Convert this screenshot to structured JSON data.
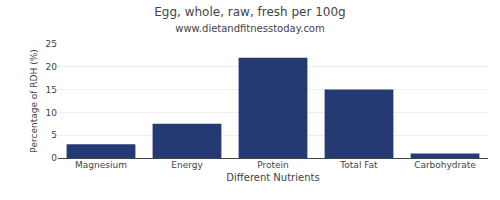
{
  "chart_data": {
    "type": "bar",
    "title": "Egg, whole, raw, fresh per 100g",
    "subtitle": "www.dietandfitnesstoday.com",
    "categories": [
      "Magnesium",
      "Energy",
      "Protein",
      "Total Fat",
      "Carbohydrate"
    ],
    "values": [
      3.0,
      7.5,
      22.0,
      15.0,
      1.0
    ],
    "color": "#253A72",
    "xlabel": "Different Nutrients",
    "ylabel": "Percentage of RDH (%)",
    "ylim": [
      0,
      25
    ],
    "yticks": [
      0,
      5,
      10,
      15,
      20,
      25
    ],
    "grid": true
  }
}
